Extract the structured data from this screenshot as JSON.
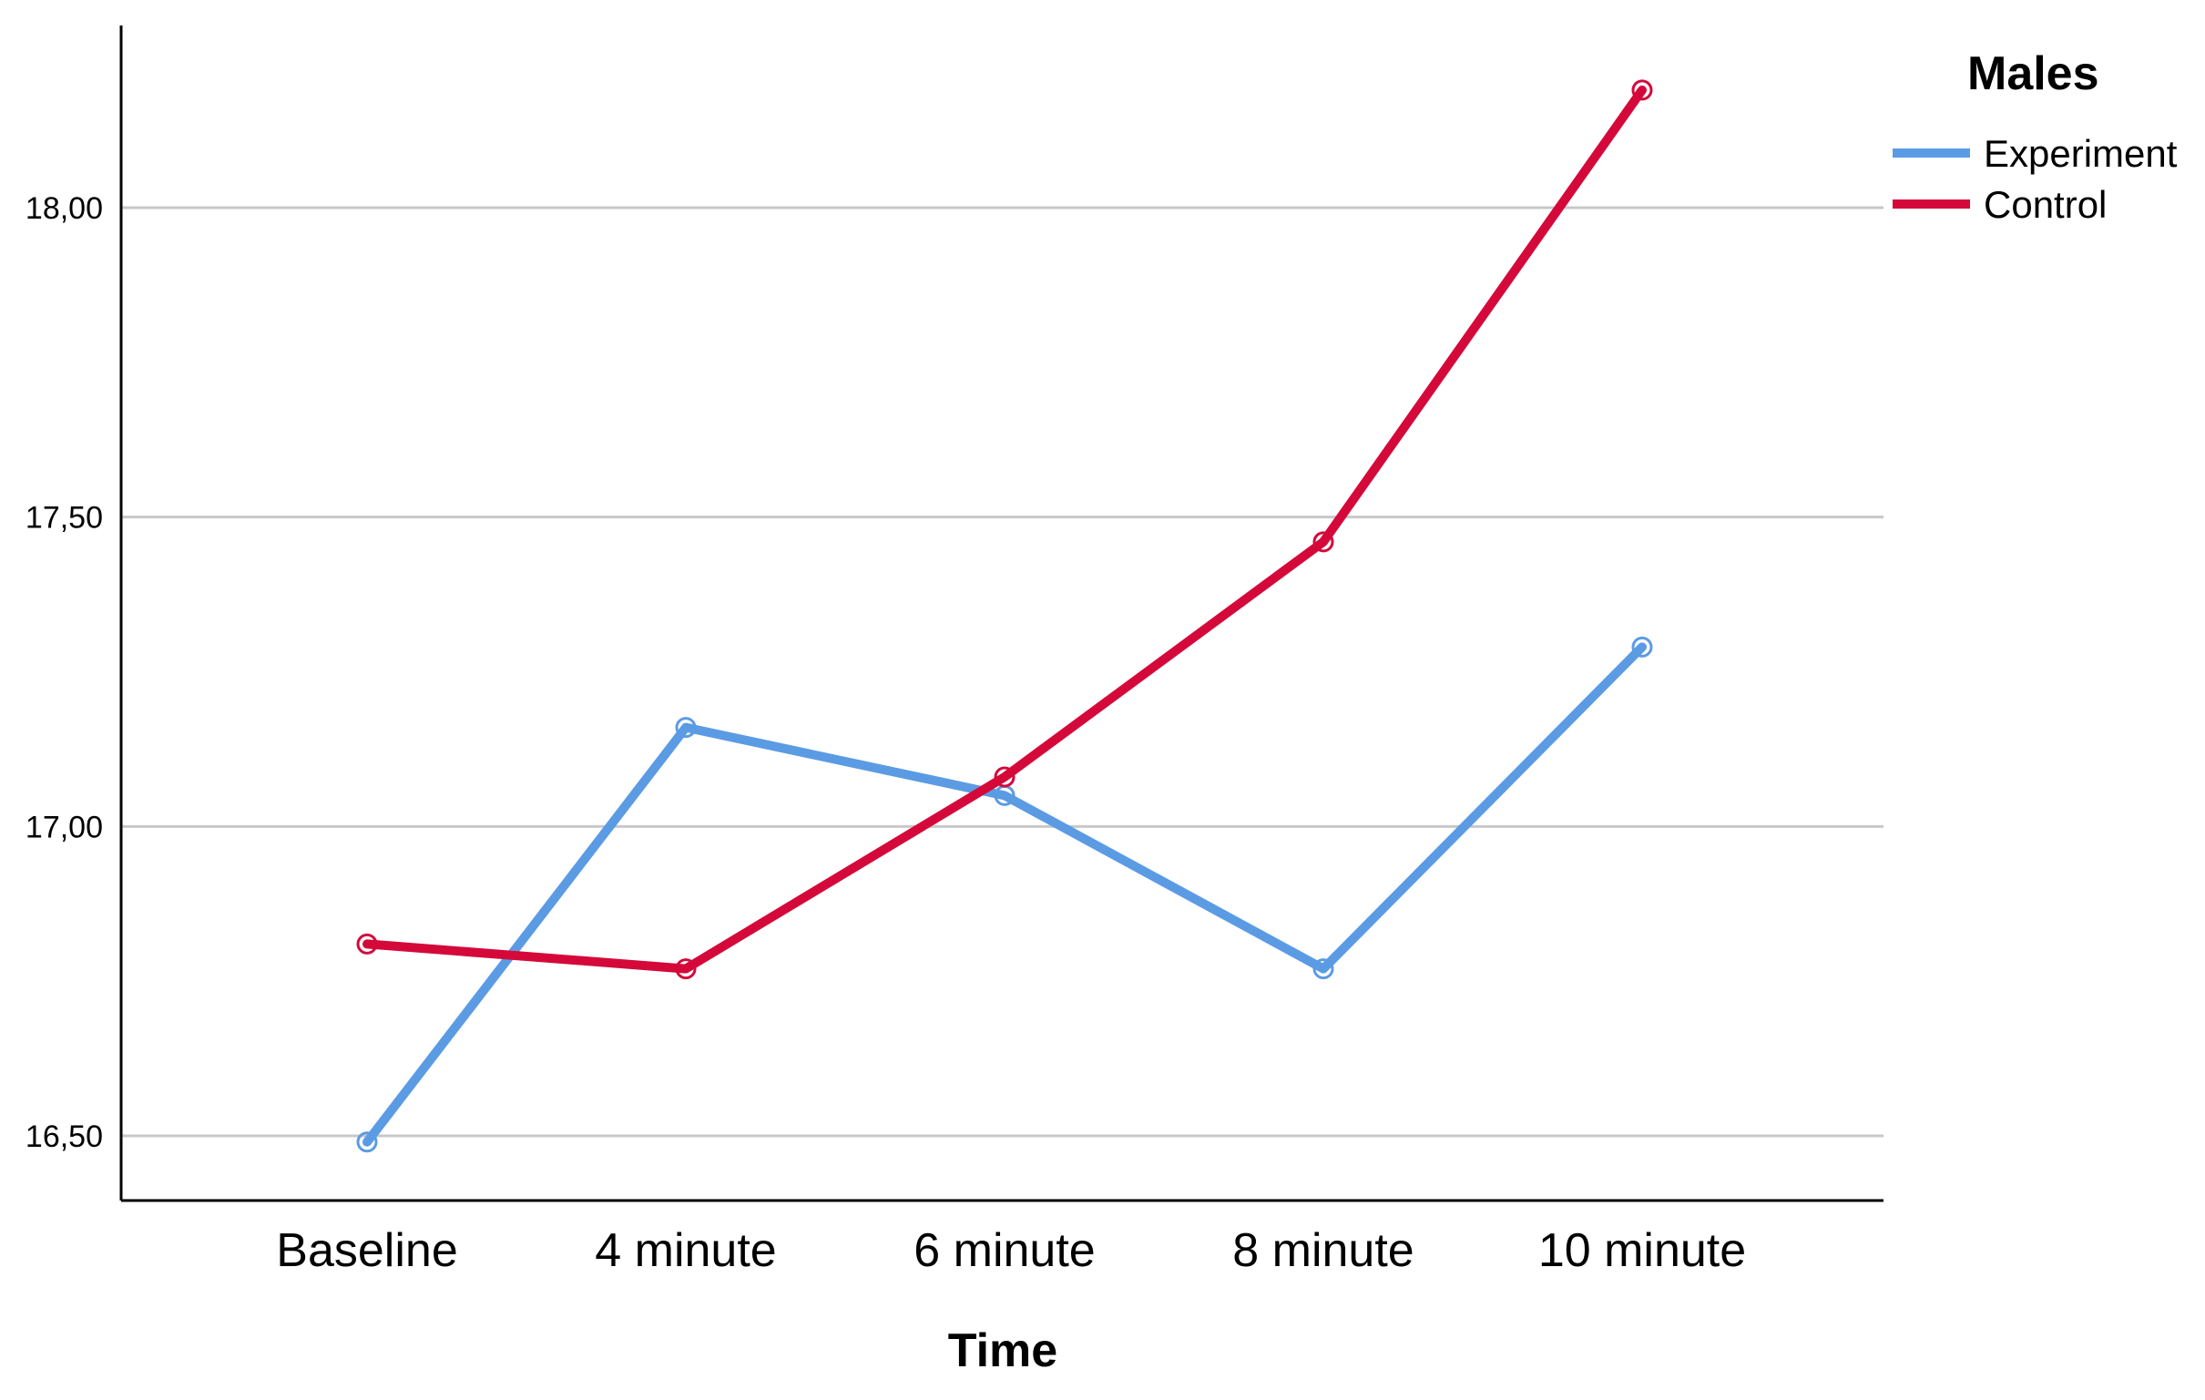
{
  "chart_data": {
    "type": "line",
    "title": "",
    "xlabel": "Time",
    "ylabel": "",
    "categories": [
      "Baseline",
      "4 minute",
      "6 minute",
      "8 minute",
      "10 minute"
    ],
    "ylim": [
      16.4,
      18.3
    ],
    "yticks": [
      "16,50",
      "17,00",
      "17,50",
      "18,00"
    ],
    "ytick_values": [
      16.5,
      17.0,
      17.5,
      18.0
    ],
    "grid": "horizontal",
    "legend": {
      "title": "Males",
      "placement": "top-right"
    },
    "series": [
      {
        "name": "Experiment",
        "color": "#5b9be3",
        "values": [
          16.49,
          17.16,
          17.05,
          16.77,
          17.29
        ]
      },
      {
        "name": "Control",
        "color": "#d4093a",
        "values": [
          16.81,
          16.77,
          17.08,
          17.46,
          18.19
        ]
      }
    ]
  }
}
